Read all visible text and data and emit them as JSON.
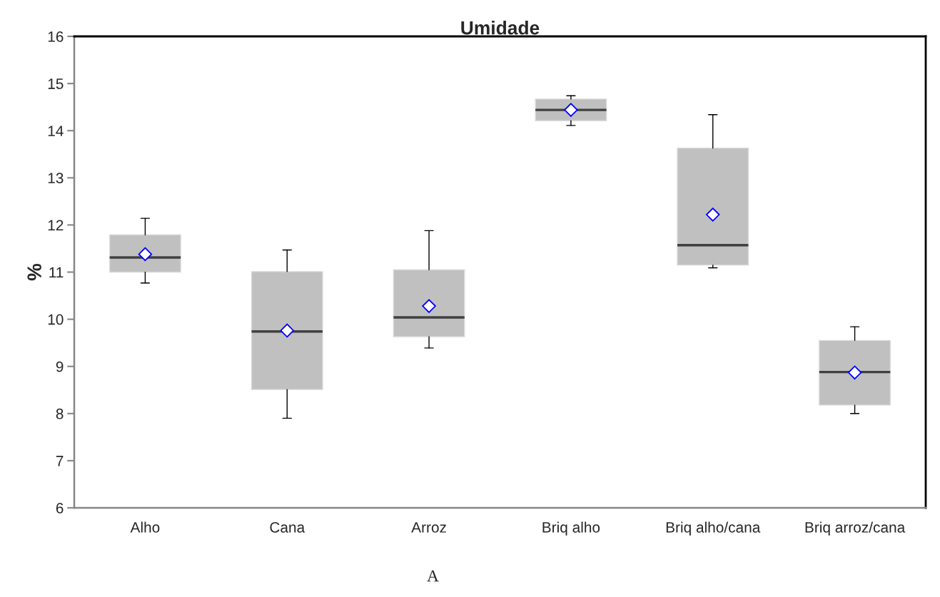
{
  "chart_data": {
    "type": "box",
    "title": "Umidade",
    "ylabel": "%",
    "categories": [
      "Alho",
      "Cana",
      "Arroz",
      "Briq alho",
      "Briq alho/cana",
      "Briq arroz/cana"
    ],
    "series": [
      {
        "color": "#c0c0c0",
        "boxes": [
          {
            "low": 10.77,
            "q1": 11.0,
            "median": 11.31,
            "q3": 11.79,
            "high": 12.14,
            "mean": 11.38
          },
          {
            "low": 7.9,
            "q1": 8.51,
            "median": 9.74,
            "q3": 11.01,
            "high": 11.47,
            "mean": 9.76
          },
          {
            "low": 9.39,
            "q1": 9.63,
            "median": 10.04,
            "q3": 11.05,
            "high": 11.88,
            "mean": 10.28
          },
          {
            "low": 14.11,
            "q1": 14.21,
            "median": 14.44,
            "q3": 14.67,
            "high": 14.74,
            "mean": 14.44
          },
          {
            "low": 11.09,
            "q1": 11.15,
            "median": 11.57,
            "q3": 13.63,
            "high": 14.34,
            "mean": 12.22
          },
          {
            "low": 8.0,
            "q1": 8.18,
            "median": 8.88,
            "q3": 9.55,
            "high": 9.84,
            "mean": 8.87
          }
        ]
      }
    ],
    "marker": "diamond",
    "ylim": [
      6,
      16
    ],
    "yticks": [
      6,
      7,
      8,
      9,
      10,
      11,
      12,
      13,
      14,
      15,
      16
    ],
    "annotations": [
      "A"
    ]
  }
}
